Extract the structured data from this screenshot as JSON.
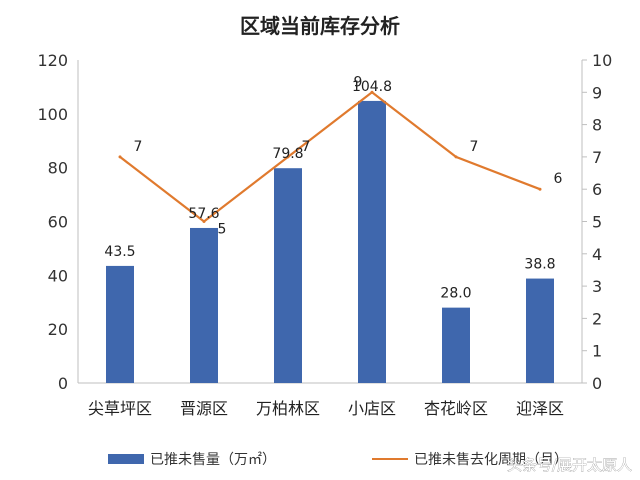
{
  "chart_data": {
    "type": "bar",
    "title": "区域当前库存分析",
    "categories": [
      "尖草坪区",
      "晋源区",
      "万柏林区",
      "小店区",
      "杏花岭区",
      "迎泽区"
    ],
    "series": [
      {
        "name": "已推未售量（万㎡）",
        "type": "bar",
        "axis": "left",
        "color": "#3f67ad",
        "values": [
          43.5,
          57.6,
          79.8,
          104.8,
          28.0,
          38.8
        ],
        "labels": [
          "43.5",
          "57.6",
          "79.8",
          "104.8",
          "28.0",
          "38.8"
        ]
      },
      {
        "name": "已推未售去化周期（月）",
        "type": "line",
        "axis": "right",
        "color": "#e07a2e",
        "values": [
          7,
          5,
          7,
          9,
          7,
          6
        ],
        "labels": [
          "7",
          "5",
          "7",
          "9",
          "7",
          "6"
        ]
      }
    ],
    "y_left": {
      "min": 0,
      "max": 120,
      "step": 20
    },
    "y_right": {
      "min": 0,
      "max": 10,
      "step": 1
    },
    "legend": "bottom",
    "grid": false
  },
  "watermark": "头条号/展开太原人"
}
